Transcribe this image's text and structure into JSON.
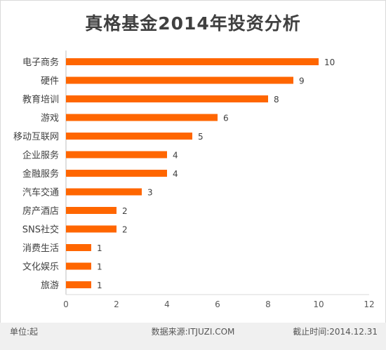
{
  "chart_data": {
    "type": "bar",
    "orientation": "horizontal",
    "title": "真格基金2014年投资分析",
    "categories": [
      "电子商务",
      "硬件",
      "教育培训",
      "游戏",
      "移动互联网",
      "企业服务",
      "金融服务",
      "汽车交通",
      "房产酒店",
      "SNS社交",
      "消费生活",
      "文化娱乐",
      "旅游"
    ],
    "values": [
      10,
      9,
      8,
      6,
      5,
      4,
      4,
      3,
      2,
      2,
      1,
      1,
      1
    ],
    "xlim": [
      0,
      12
    ],
    "xticks": [
      "0",
      "2",
      "4",
      "6",
      "8",
      "10",
      "12"
    ],
    "xlabel": "",
    "ylabel": "",
    "grid": false,
    "legend": "none",
    "bar_color": "#ff6600"
  },
  "footer": {
    "unit": "单位:起",
    "source": "数据来源:ITJUZI.COM",
    "cutoff": "截止时间:2014.12.31"
  }
}
